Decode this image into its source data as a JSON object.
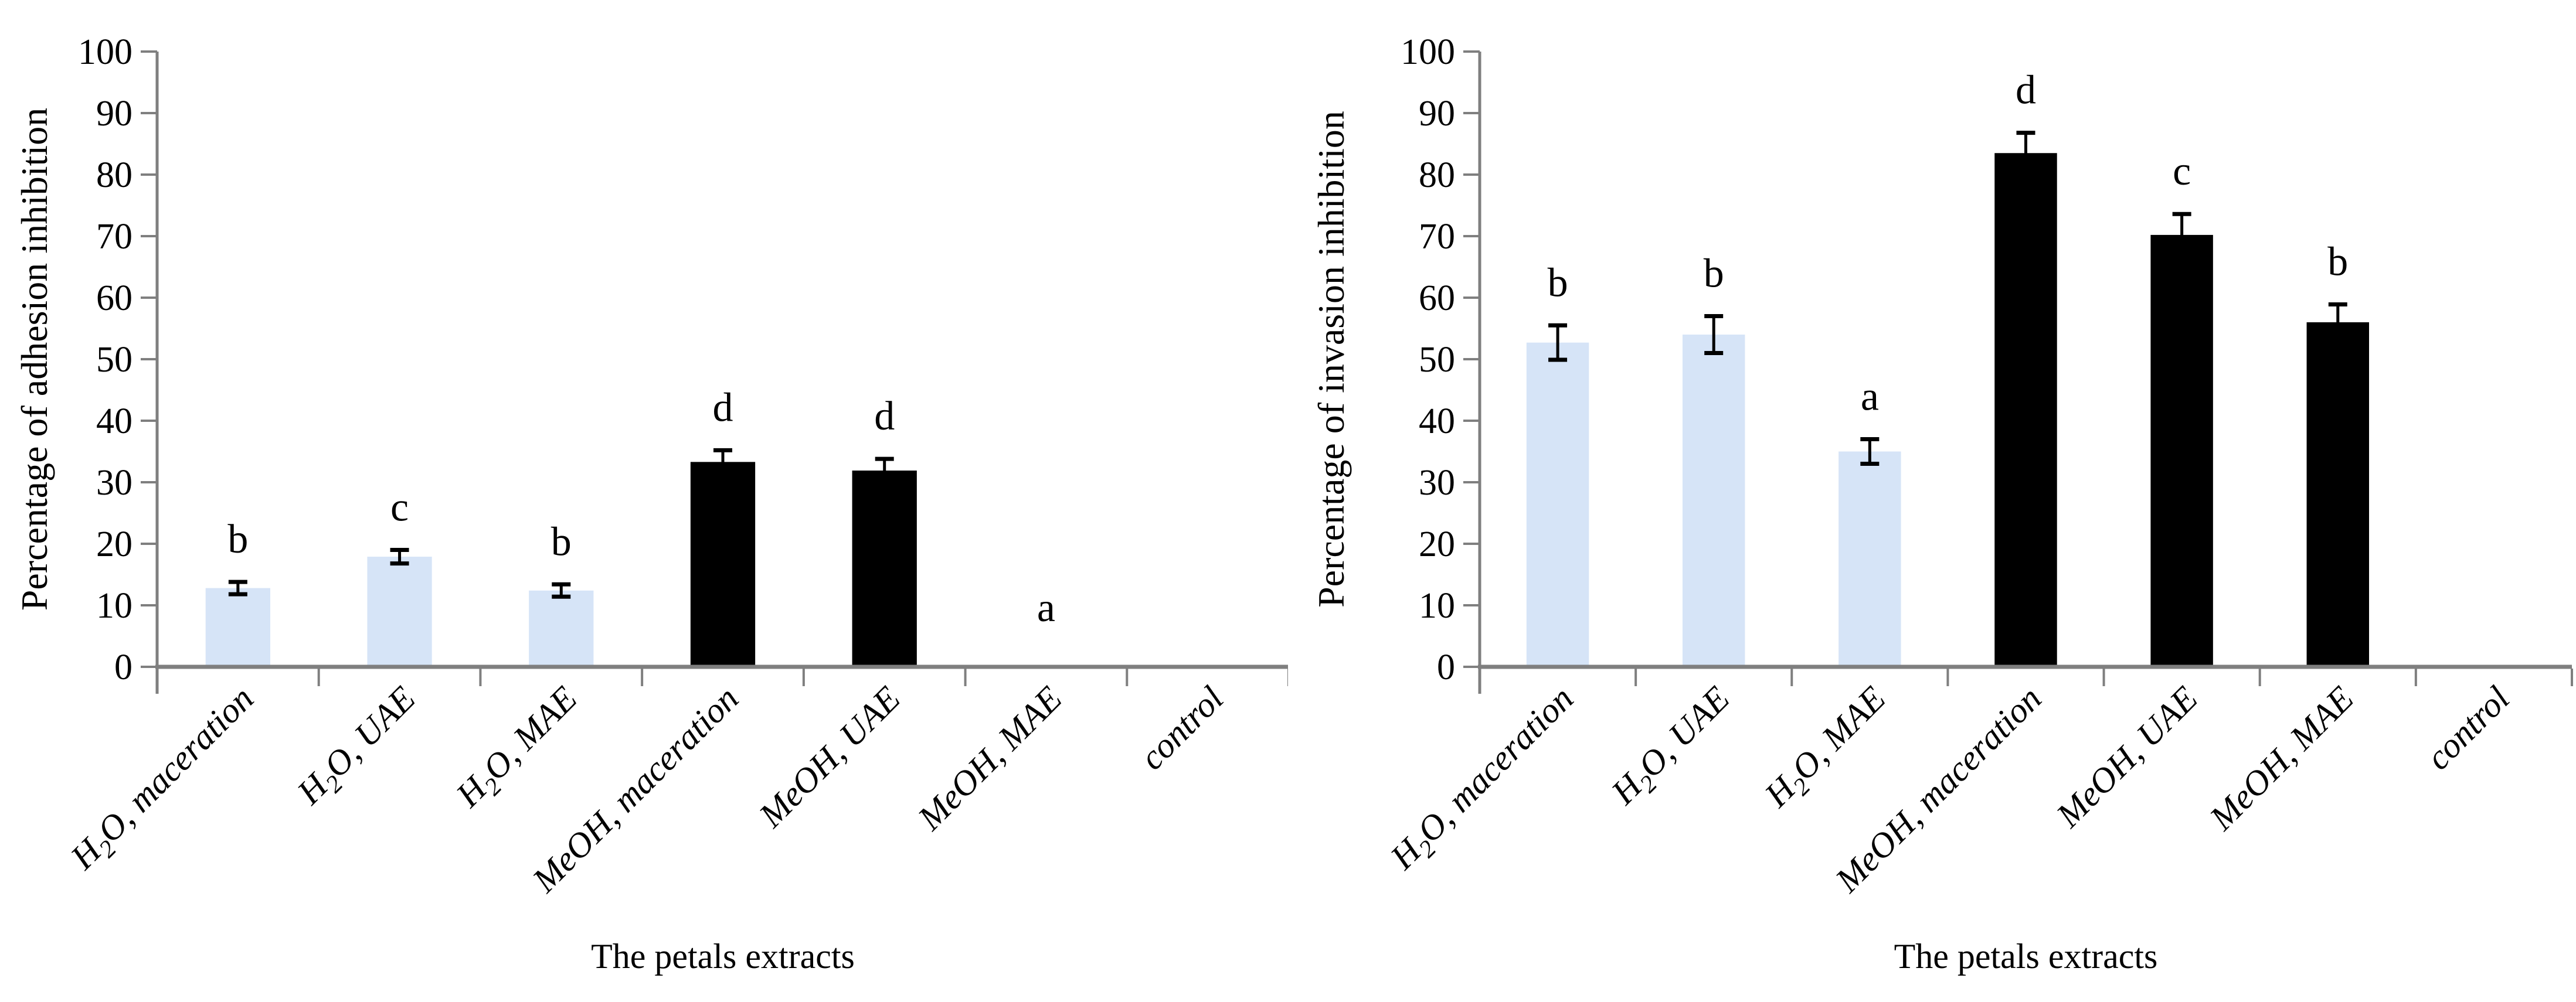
{
  "figure": {
    "background": "#ffffff",
    "description_left": "bar chart of adhesion inhibition by petal extract",
    "description_right": "bar chart of invasion inhibition by petal extract"
  },
  "styles": {
    "axis_color": "#7f7f7f",
    "error_bar_color": "#000000",
    "text_color": "#000000",
    "water_bar_color": "#d6e4f7",
    "meoh_bar_color": "#000000"
  },
  "chart_data": [
    {
      "type": "bar",
      "title": "",
      "xlabel": "The petals extracts",
      "ylabel": "Percentage of adhesion inhibition",
      "ylim": [
        0,
        100
      ],
      "ytick_step": 10,
      "grid": "off",
      "legend": "none",
      "categories": [
        "H₂O, maceration",
        "H₂O, UAE",
        "H₂O, MAE",
        "MeOH, maceration",
        "MeOH, UAE",
        "MeOH, MAE",
        "control"
      ],
      "values": [
        12.8,
        17.9,
        12.4,
        33.3,
        31.9,
        0,
        0
      ],
      "errors": [
        1.0,
        1.1,
        1.0,
        1.9,
        1.9,
        0,
        0
      ],
      "sig_letters": [
        "b",
        "c",
        "b",
        "d",
        "d",
        "a",
        ""
      ],
      "bar_colors": [
        "#d6e4f7",
        "#d6e4f7",
        "#d6e4f7",
        "#000000",
        "#000000",
        "#000000",
        "#000000"
      ]
    },
    {
      "type": "bar",
      "title": "",
      "xlabel": "The petals extracts",
      "ylabel": "Percentage of invasion inhibition",
      "ylim": [
        0,
        100
      ],
      "ytick_step": 10,
      "grid": "off",
      "legend": "none",
      "categories": [
        "H₂O, maceration",
        "H₂O, UAE",
        "H₂O, MAE",
        "MeOH, maceration",
        "MeOH, UAE",
        "MeOH, MAE",
        "control"
      ],
      "values": [
        52.7,
        54.0,
        35.0,
        83.5,
        70.2,
        56.0,
        0
      ],
      "errors": [
        2.8,
        3.0,
        2.0,
        3.3,
        3.4,
        2.9,
        0
      ],
      "sig_letters": [
        "b",
        "b",
        "a",
        "d",
        "c",
        "b",
        ""
      ],
      "bar_colors": [
        "#d6e4f7",
        "#d6e4f7",
        "#d6e4f7",
        "#000000",
        "#000000",
        "#000000",
        "#000000"
      ]
    }
  ]
}
